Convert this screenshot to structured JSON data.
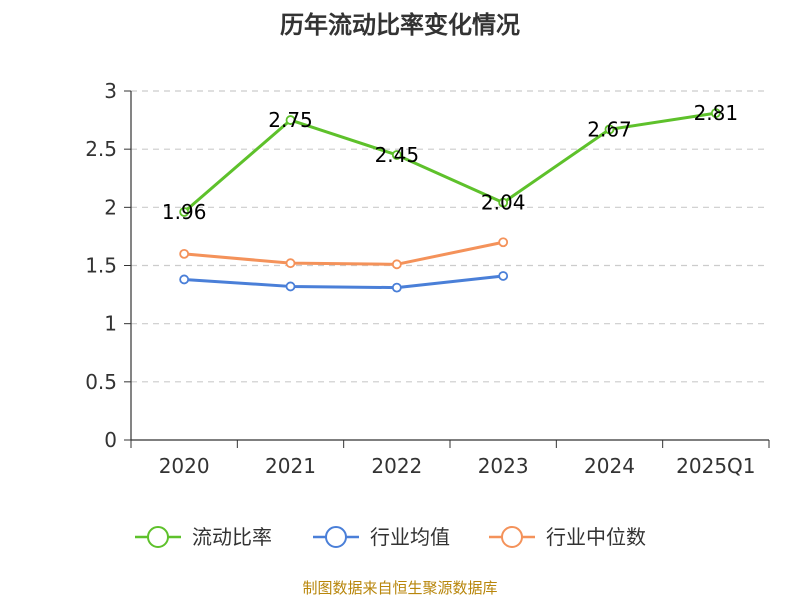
{
  "chart_data": {
    "type": "line",
    "title": "历年流动比率变化情况",
    "categories": [
      "2020",
      "2021",
      "2022",
      "2023",
      "2024",
      "2025Q1"
    ],
    "ylim": [
      0,
      3
    ],
    "yticks": [
      "0",
      "0.5",
      "1",
      "1.5",
      "2",
      "2.5",
      "3"
    ],
    "grid": true,
    "legend_position": "bottom",
    "series": [
      {
        "name": "流动比率",
        "color": "#5ec12b",
        "values": [
          1.96,
          2.75,
          2.45,
          2.04,
          2.67,
          2.81
        ],
        "labels": [
          "1.96",
          "2.75",
          "2.45",
          "2.04",
          "2.67",
          "2.81"
        ]
      },
      {
        "name": "行业均值",
        "color": "#4a7fd8",
        "values": [
          1.38,
          1.32,
          1.31,
          1.41,
          null,
          null
        ]
      },
      {
        "name": "行业中位数",
        "color": "#f4925a",
        "values": [
          1.6,
          1.52,
          1.51,
          1.7,
          null,
          null
        ]
      }
    ]
  },
  "source": "制图数据来自恒生聚源数据库"
}
